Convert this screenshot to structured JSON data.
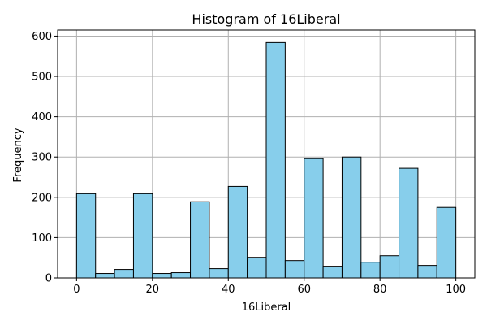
{
  "chart_data": {
    "type": "bar",
    "title": "Histogram of 16Liberal",
    "xlabel": "16Liberal",
    "ylabel": "Frequency",
    "xlim": [
      -5,
      105
    ],
    "ylim": [
      0,
      615
    ],
    "grid": true,
    "bar_color": "#87CEEB",
    "edge_color": "#000000",
    "grid_color": "#b0b0b0",
    "bin_edges": [
      0,
      5,
      10,
      15,
      20,
      25,
      30,
      35,
      40,
      45,
      50,
      55,
      60,
      65,
      70,
      75,
      80,
      85,
      90,
      95,
      100
    ],
    "values": [
      209,
      11,
      21,
      209,
      11,
      13,
      189,
      23,
      227,
      51,
      584,
      43,
      296,
      29,
      300,
      39,
      55,
      272,
      31,
      175
    ],
    "x_ticks": [
      0,
      20,
      40,
      60,
      80,
      100
    ],
    "x_tick_labels": [
      "0",
      "20",
      "40",
      "60",
      "80",
      "100"
    ],
    "y_ticks": [
      0,
      100,
      200,
      300,
      400,
      500,
      600
    ],
    "y_tick_labels": [
      "0",
      "100",
      "200",
      "300",
      "400",
      "500",
      "600"
    ]
  }
}
